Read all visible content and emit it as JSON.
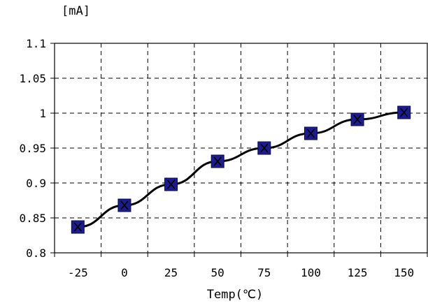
{
  "chart_data": {
    "type": "line",
    "unit_label": "[mA]",
    "xlabel": "Temp(℃)",
    "ylabel": "",
    "title": "",
    "categories": [
      "-25",
      "0",
      "25",
      "50",
      "75",
      "100",
      "125",
      "150"
    ],
    "y_ticks": [
      "1.1",
      "1.05",
      "1",
      "0.95",
      "0.9",
      "0.85",
      "0.8"
    ],
    "ylim": [
      0.8,
      1.1
    ],
    "series": [
      {
        "values": [
          0.837,
          0.868,
          0.898,
          0.931,
          0.95,
          0.971,
          0.991,
          1.001
        ],
        "line_color": "#000000",
        "marker": "square",
        "marker_color": "#1c1c8c"
      }
    ],
    "grid": true,
    "grid_style": "dashed"
  }
}
